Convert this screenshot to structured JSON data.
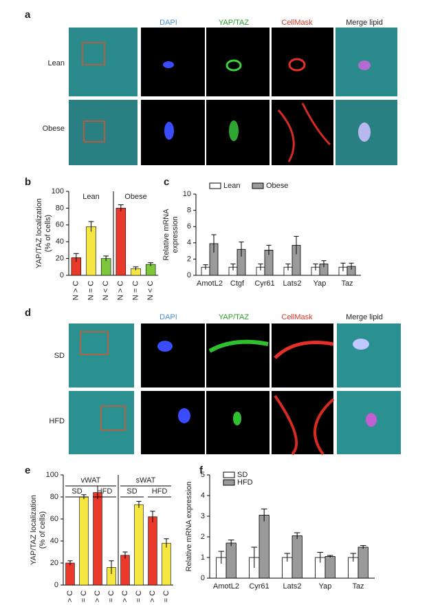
{
  "panels": [
    {
      "letter": "a",
      "channels": [
        "DAPI",
        "YAP/TAZ",
        "CellMask",
        "Merge lipid"
      ],
      "rows": [
        "Lean",
        "Obese"
      ]
    },
    {
      "letter": "d",
      "channels": [
        "DAPI",
        "YAP/TAZ",
        "CellMask",
        "Merge lipid"
      ],
      "rows": [
        "SD",
        "HFD"
      ]
    }
  ],
  "chart_data": [
    {
      "type": "bar",
      "letter": "b",
      "ylabel": [
        "YAP/TAZ localization",
        "(% of cells)"
      ],
      "ylim": [
        0,
        100
      ],
      "yticks": [
        0,
        20,
        40,
        60,
        80,
        100
      ],
      "categories": [
        "N > C",
        "N = C",
        "N < C",
        "N > C",
        "N = C",
        "N < C"
      ],
      "groups": [
        {
          "label": "Lean"
        },
        {
          "label": "Obese"
        }
      ],
      "series": [
        {
          "values": [
            21,
            58,
            20,
            80,
            8,
            13
          ],
          "errors": [
            5,
            6,
            3,
            4,
            2,
            2
          ],
          "colors": [
            "#e8392b",
            "#f5e642",
            "#7cc83a",
            "#e8392b",
            "#f5e642",
            "#7cc83a"
          ]
        }
      ]
    },
    {
      "type": "grouped_bar",
      "letter": "c",
      "ylabel": [
        "Relative mRNA",
        "expression"
      ],
      "ylim": [
        0,
        10
      ],
      "yticks": [
        0,
        2,
        4,
        6,
        8,
        10
      ],
      "legend": "top",
      "categories": [
        "AmotL2",
        "Ctgf",
        "Cyr61",
        "Lats2",
        "Yap",
        "Taz"
      ],
      "series": [
        {
          "name": "Lean",
          "color": "#ffffff",
          "values": [
            1,
            1,
            1,
            1,
            1,
            1
          ],
          "errors": [
            0.3,
            0.4,
            0.4,
            0.4,
            0.4,
            0.5
          ]
        },
        {
          "name": "Obese",
          "color": "#9a9a9a",
          "values": [
            3.9,
            3.2,
            3.1,
            3.7,
            1.4,
            1.1
          ],
          "errors": [
            1.1,
            0.9,
            0.6,
            1.1,
            0.4,
            0.4
          ]
        }
      ]
    },
    {
      "type": "bar",
      "letter": "e",
      "ylabel": [
        "YAP/TAZ localization",
        "(% of cells)"
      ],
      "ylim": [
        0,
        100
      ],
      "yticks": [
        0,
        20,
        40,
        60,
        80,
        100
      ],
      "categories": [
        "N > C",
        "N = C",
        "N > C",
        "N = C",
        "N > C",
        "N = C",
        "N > C",
        "N = C"
      ],
      "groups": [
        {
          "label": "vWAT",
          "subgroups": [
            "SD",
            "HFD"
          ]
        },
        {
          "label": "sWAT",
          "subgroups": [
            "SD",
            "HFD"
          ]
        }
      ],
      "series": [
        {
          "values": [
            20,
            80,
            84,
            16,
            27,
            73,
            62,
            38
          ],
          "errors": [
            2,
            2,
            6,
            6,
            3,
            3,
            5,
            4
          ],
          "colors": [
            "#e8392b",
            "#f5e642",
            "#e8392b",
            "#f5e642",
            "#e8392b",
            "#f5e642",
            "#e8392b",
            "#f5e642"
          ]
        }
      ]
    },
    {
      "type": "grouped_bar",
      "letter": "f",
      "ylabel": [
        "Relative mRNA expression"
      ],
      "ylim": [
        0,
        5
      ],
      "yticks": [
        0,
        1,
        2,
        3,
        4,
        5
      ],
      "legend": "top-left",
      "categories": [
        "AmotL2",
        "Cyr61",
        "Lats2",
        "Yap",
        "Taz"
      ],
      "series": [
        {
          "name": "SD",
          "color": "#ffffff",
          "values": [
            1,
            1,
            1,
            1,
            1
          ],
          "errors": [
            0.3,
            0.5,
            0.2,
            0.25,
            0.2
          ]
        },
        {
          "name": "HFD",
          "color": "#9a9a9a",
          "values": [
            1.7,
            3.05,
            2.05,
            1.05,
            1.5
          ],
          "errors": [
            0.15,
            0.3,
            0.15,
            0.05,
            0.08
          ]
        }
      ]
    }
  ]
}
